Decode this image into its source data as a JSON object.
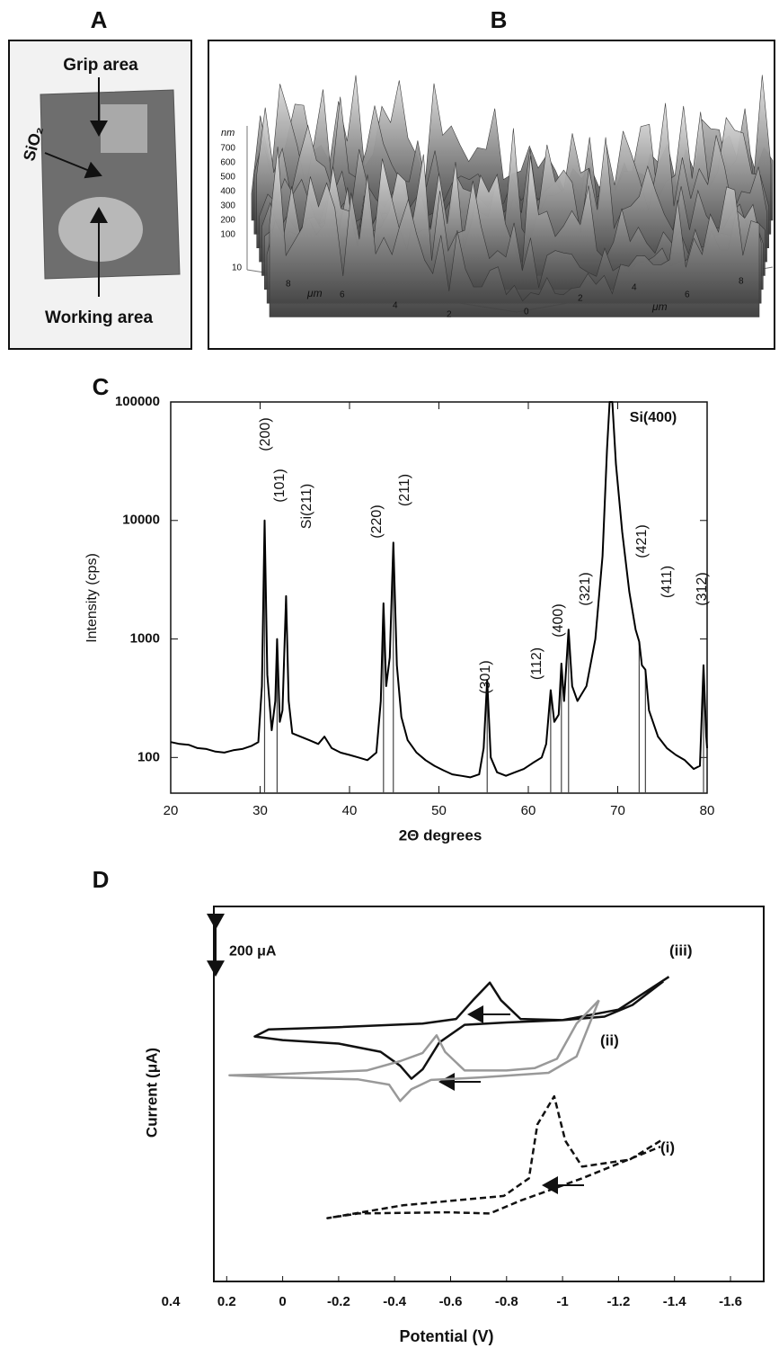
{
  "panels": {
    "A": {
      "label": "A",
      "grip": "Grip area",
      "oxide": "SiO₂",
      "working": "Working area"
    },
    "B": {
      "label": "B",
      "z_unit": "nm",
      "z_ticks": [
        700,
        600,
        500,
        400,
        300,
        200,
        100
      ],
      "y_unit": "μm",
      "y_ticks": [
        10,
        8,
        6,
        4,
        2
      ],
      "x_unit": "μm",
      "x_ticks": [
        0,
        2,
        4,
        6,
        8
      ]
    }
  },
  "chart_data": [
    {
      "type": "line",
      "label": "C",
      "xlabel": "2Θ degrees",
      "ylabel": "Intensity (cps)",
      "log_y": true,
      "color": "#000",
      "xlim": [
        20,
        80
      ],
      "xticks": [
        20,
        30,
        40,
        50,
        60,
        70,
        80
      ],
      "ylim": [
        50,
        100000
      ],
      "yticks": [
        100,
        1000,
        10000,
        100000
      ],
      "x": [
        20,
        21,
        22,
        23,
        24,
        25,
        26,
        27,
        28,
        29,
        29.8,
        30.2,
        30.5,
        30.8,
        31.3,
        31.7,
        31.9,
        32.2,
        32.5,
        32.9,
        33.2,
        33.6,
        34.5,
        35.5,
        36.5,
        37.2,
        38,
        39,
        40,
        41,
        42,
        43,
        43.5,
        43.8,
        44.1,
        44.5,
        44.9,
        45.3,
        45.8,
        46.5,
        47.5,
        48.5,
        49.5,
        50.5,
        51.5,
        52.5,
        53.5,
        54.5,
        55,
        55.4,
        55.8,
        56.5,
        57.5,
        58.5,
        59.5,
        60.5,
        61.5,
        62,
        62.5,
        62.9,
        63.4,
        63.7,
        64,
        64.5,
        64.9,
        65.5,
        66.5,
        67.5,
        68.3,
        68.8,
        69.1,
        69.4,
        69.8,
        70.5,
        71.3,
        72,
        72.4,
        72.7,
        73.1,
        73.5,
        74.5,
        75.5,
        76.5,
        77.5,
        78.5,
        79.2,
        79.6,
        79.9,
        80
      ],
      "values": [
        135,
        130,
        128,
        120,
        118,
        112,
        110,
        115,
        118,
        125,
        135,
        400,
        10000,
        500,
        170,
        300,
        1000,
        200,
        250,
        2300,
        300,
        160,
        150,
        140,
        130,
        150,
        120,
        110,
        105,
        100,
        95,
        110,
        300,
        2000,
        400,
        700,
        6500,
        600,
        220,
        140,
        110,
        95,
        85,
        78,
        72,
        70,
        68,
        72,
        120,
        450,
        100,
        75,
        70,
        75,
        80,
        90,
        100,
        130,
        370,
        200,
        230,
        620,
        300,
        1200,
        400,
        300,
        400,
        1000,
        5000,
        40000,
        100000,
        100000,
        30000,
        8000,
        2500,
        1200,
        950,
        600,
        550,
        250,
        150,
        120,
        105,
        95,
        80,
        85,
        600,
        150,
        120
      ],
      "reference_peaks": {
        "x": [
          30.5,
          31.9,
          43.8,
          44.9,
          55.4,
          62.5,
          63.7,
          64.5,
          72.4,
          73.1,
          79.6
        ],
        "values": [
          10000,
          1000,
          2000,
          6500,
          450,
          370,
          620,
          1200,
          950,
          550,
          600
        ]
      },
      "annotations": [
        "(200)",
        "(101)",
        "Si(211)",
        "(220)",
        "(211)",
        "(301)",
        "(112)",
        "(400)",
        "(321)",
        "Si(400)",
        "(421)",
        "(411)",
        "(312)"
      ]
    },
    {
      "type": "line",
      "label": "D",
      "xlabel": "Potential (V)",
      "ylabel": "Current (μA)",
      "xlim": [
        0.4,
        -1.6
      ],
      "xticks": [
        0.4,
        0.2,
        0,
        -0.2,
        -0.4,
        -0.6,
        -0.8,
        -1,
        -1.2,
        -1.4,
        -1.6
      ],
      "ylim": [
        0,
        1600
      ],
      "scale_bar": {
        "value": 200,
        "label": "200 μA"
      },
      "series": [
        {
          "name": "(iii)",
          "color": "#111",
          "dashed": false,
          "x": [
            -1.38,
            -1.2,
            -1.0,
            -0.85,
            -0.78,
            -0.74,
            -0.68,
            -0.62,
            -0.5,
            -0.2,
            0.05,
            0.1,
            0.0,
            -0.2,
            -0.35,
            -0.42,
            -0.46,
            -0.5,
            -0.56,
            -0.65,
            -0.8,
            -1.0,
            -1.15,
            -1.25,
            -1.36
          ],
          "values": [
            1300,
            1160,
            1115,
            1120,
            1200,
            1275,
            1200,
            1120,
            1100,
            1085,
            1075,
            1045,
            1030,
            1015,
            980,
            920,
            865,
            905,
            1020,
            1095,
            1105,
            1115,
            1130,
            1180,
            1280
          ]
        },
        {
          "name": "(ii)",
          "color": "#999",
          "dashed": false,
          "x": [
            -1.13,
            -1.05,
            -0.98,
            -0.9,
            -0.8,
            -0.65,
            -0.58,
            -0.55,
            -0.5,
            -0.42,
            -0.3,
            0.0,
            0.19,
            0.0,
            -0.27,
            -0.38,
            -0.42,
            -0.46,
            -0.53,
            -0.7,
            -0.95,
            -1.05,
            -1.13
          ],
          "values": [
            1200,
            1100,
            950,
            910,
            900,
            900,
            980,
            1050,
            975,
            940,
            900,
            885,
            880,
            870,
            862,
            840,
            770,
            820,
            860,
            870,
            890,
            960,
            1200
          ]
        },
        {
          "name": "(i)",
          "color": "#111",
          "dashed": true,
          "x": [
            -1.35,
            -1.24,
            -1.07,
            -1.01,
            -0.97,
            -0.91,
            -0.88,
            -0.79,
            -0.43,
            -0.16,
            -0.27,
            -0.59,
            -0.74,
            -0.85,
            -1.07,
            -1.35
          ],
          "values": [
            600,
            520,
            490,
            600,
            790,
            670,
            440,
            365,
            325,
            270,
            290,
            295,
            290,
            345,
            440,
            575
          ]
        }
      ]
    }
  ]
}
